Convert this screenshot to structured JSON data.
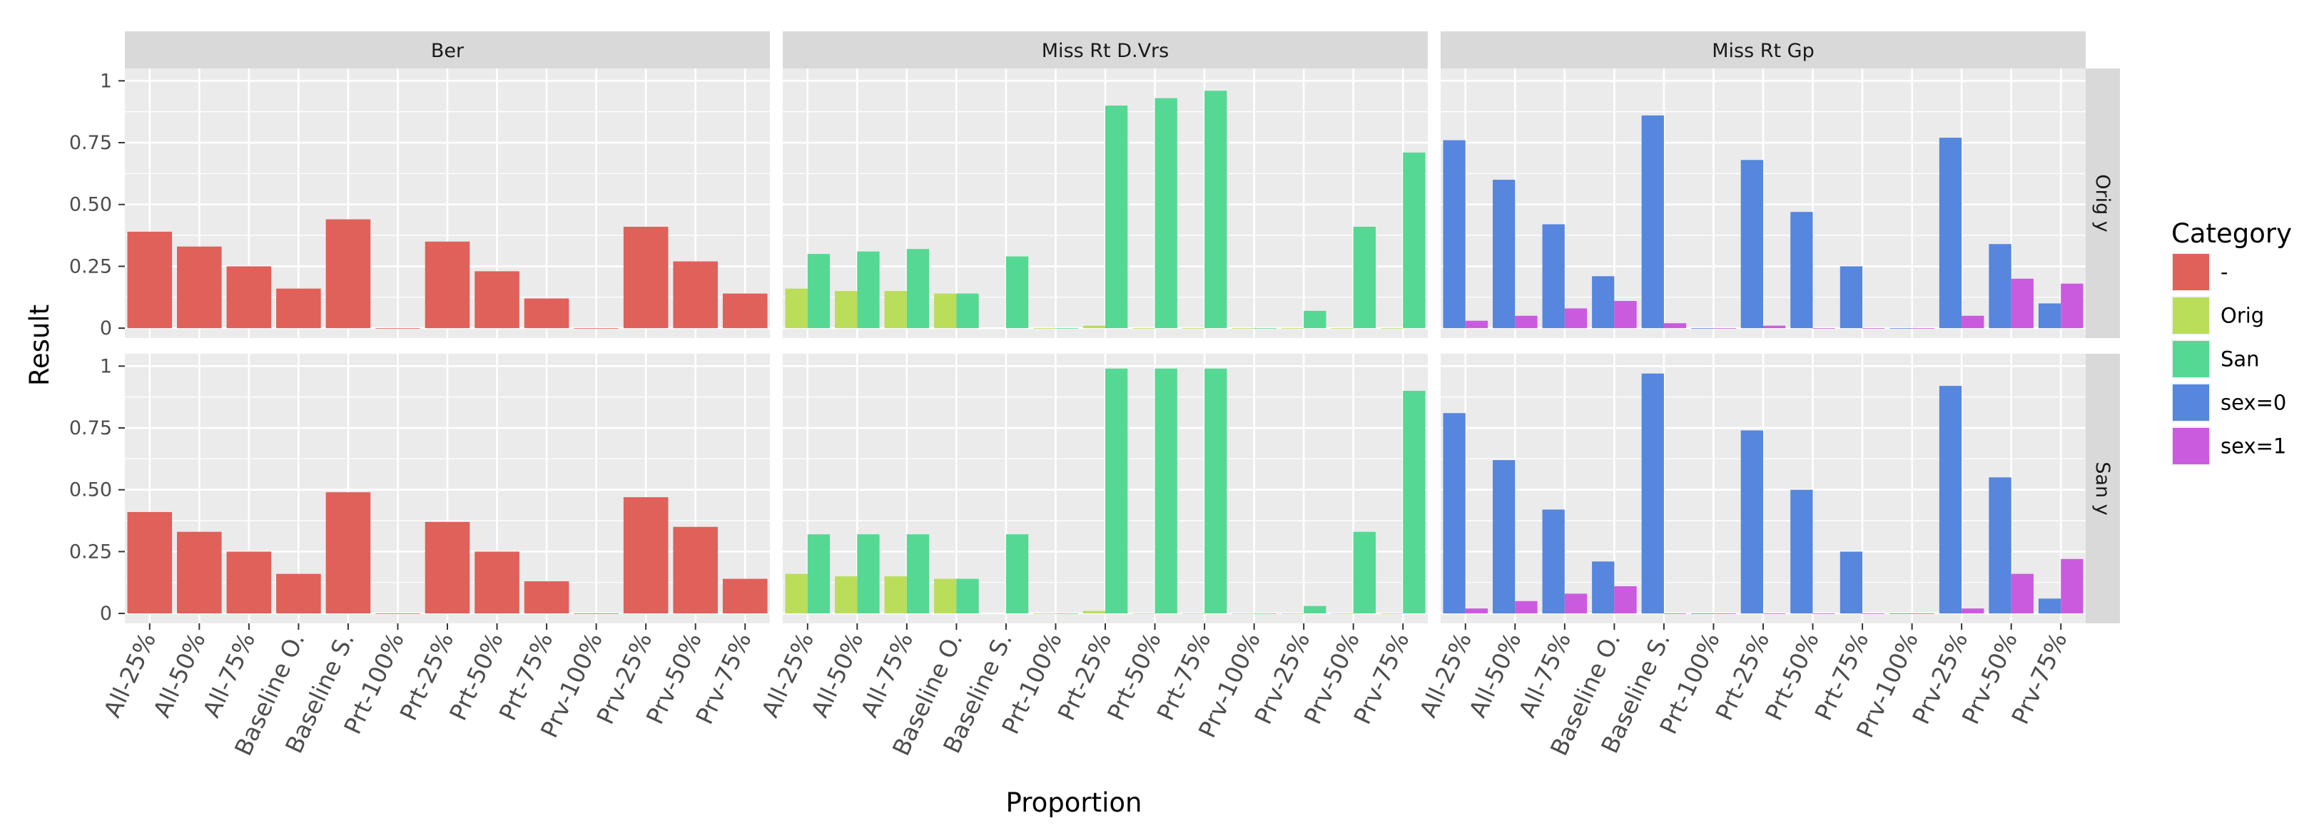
{
  "chart_data": {
    "type": "bar",
    "layout": "facet_grid",
    "xlabel": "Proportion",
    "ylabel": "Result",
    "ylim": [
      -0.04,
      1.05
    ],
    "yticks": [
      0,
      0.25,
      0.5,
      0.75,
      1
    ],
    "ytick_labels": [
      "0",
      "0.25",
      "0.50",
      "0.75",
      "1"
    ],
    "categories": [
      "All-25%",
      "All-50%",
      "All-75%",
      "Baseline O.",
      "Baseline S.",
      "Prt-100%",
      "Prt-25%",
      "Prt-50%",
      "Prt-75%",
      "Prv-100%",
      "Prv-25%",
      "Prv-50%",
      "Prv-75%"
    ],
    "facet_cols": [
      "Ber",
      "Miss Rt D.Vrs",
      "Miss Rt Gp"
    ],
    "facet_rows": [
      "Orig y",
      "San y"
    ],
    "legend": {
      "title": "Category",
      "items": [
        {
          "label": "-",
          "color": "#E0605A"
        },
        {
          "label": "Orig",
          "color": "#BADD5A"
        },
        {
          "label": "San",
          "color": "#55D893"
        },
        {
          "label": "sex=0",
          "color": "#5686DD"
        },
        {
          "label": "sex=1",
          "color": "#CB5BDE"
        }
      ]
    },
    "panels": [
      {
        "row": "Orig y",
        "col": "Ber",
        "series": [
          {
            "name": "-",
            "values": [
              0.39,
              0.33,
              0.25,
              0.16,
              0.44,
              0.0,
              0.35,
              0.23,
              0.12,
              0.0,
              0.41,
              0.27,
              0.14
            ]
          }
        ]
      },
      {
        "row": "Orig y",
        "col": "Miss Rt D.Vrs",
        "series": [
          {
            "name": "Orig",
            "values": [
              0.16,
              0.15,
              0.15,
              0.14,
              null,
              0.0,
              0.01,
              0.0,
              0.0,
              0.0,
              0.0,
              0.0,
              0.0
            ]
          },
          {
            "name": "San",
            "values": [
              0.3,
              0.31,
              0.32,
              0.14,
              0.29,
              0.0,
              0.9,
              0.93,
              0.96,
              0.0,
              0.07,
              0.41,
              0.71
            ]
          }
        ]
      },
      {
        "row": "Orig y",
        "col": "Miss Rt Gp",
        "series": [
          {
            "name": "sex=0",
            "values": [
              0.76,
              0.6,
              0.42,
              0.21,
              0.86,
              0.0,
              0.68,
              0.47,
              0.25,
              0.0,
              0.77,
              0.34,
              0.1
            ]
          },
          {
            "name": "sex=1",
            "values": [
              0.03,
              0.05,
              0.08,
              0.11,
              0.02,
              0.0,
              0.01,
              0.0,
              0.0,
              0.0,
              0.05,
              0.2,
              0.18
            ]
          }
        ]
      },
      {
        "row": "San y",
        "col": "Ber",
        "series": [
          {
            "name": "-",
            "values": [
              0.41,
              0.33,
              0.25,
              0.16,
              0.49,
              0.0,
              0.37,
              0.25,
              0.13,
              0.0,
              0.47,
              0.35,
              0.14
            ]
          }
        ]
      },
      {
        "row": "San y",
        "col": "Miss Rt D.Vrs",
        "series": [
          {
            "name": "Orig",
            "values": [
              0.16,
              0.15,
              0.15,
              0.14,
              null,
              0.0,
              0.01,
              0.0,
              0.0,
              0.0,
              0.0,
              0.0,
              0.0
            ]
          },
          {
            "name": "San",
            "values": [
              0.32,
              0.32,
              0.32,
              0.14,
              0.32,
              0.0,
              0.99,
              0.99,
              0.99,
              0.0,
              0.03,
              0.33,
              0.9
            ]
          }
        ]
      },
      {
        "row": "San y",
        "col": "Miss Rt Gp",
        "series": [
          {
            "name": "sex=0",
            "values": [
              0.81,
              0.62,
              0.42,
              0.21,
              0.97,
              0.0,
              0.74,
              0.5,
              0.25,
              0.0,
              0.92,
              0.55,
              0.06
            ]
          },
          {
            "name": "sex=1",
            "values": [
              0.02,
              0.05,
              0.08,
              0.11,
              0.0,
              0.0,
              0.0,
              0.0,
              0.0,
              0.0,
              0.02,
              0.16,
              0.22
            ]
          }
        ]
      }
    ]
  }
}
